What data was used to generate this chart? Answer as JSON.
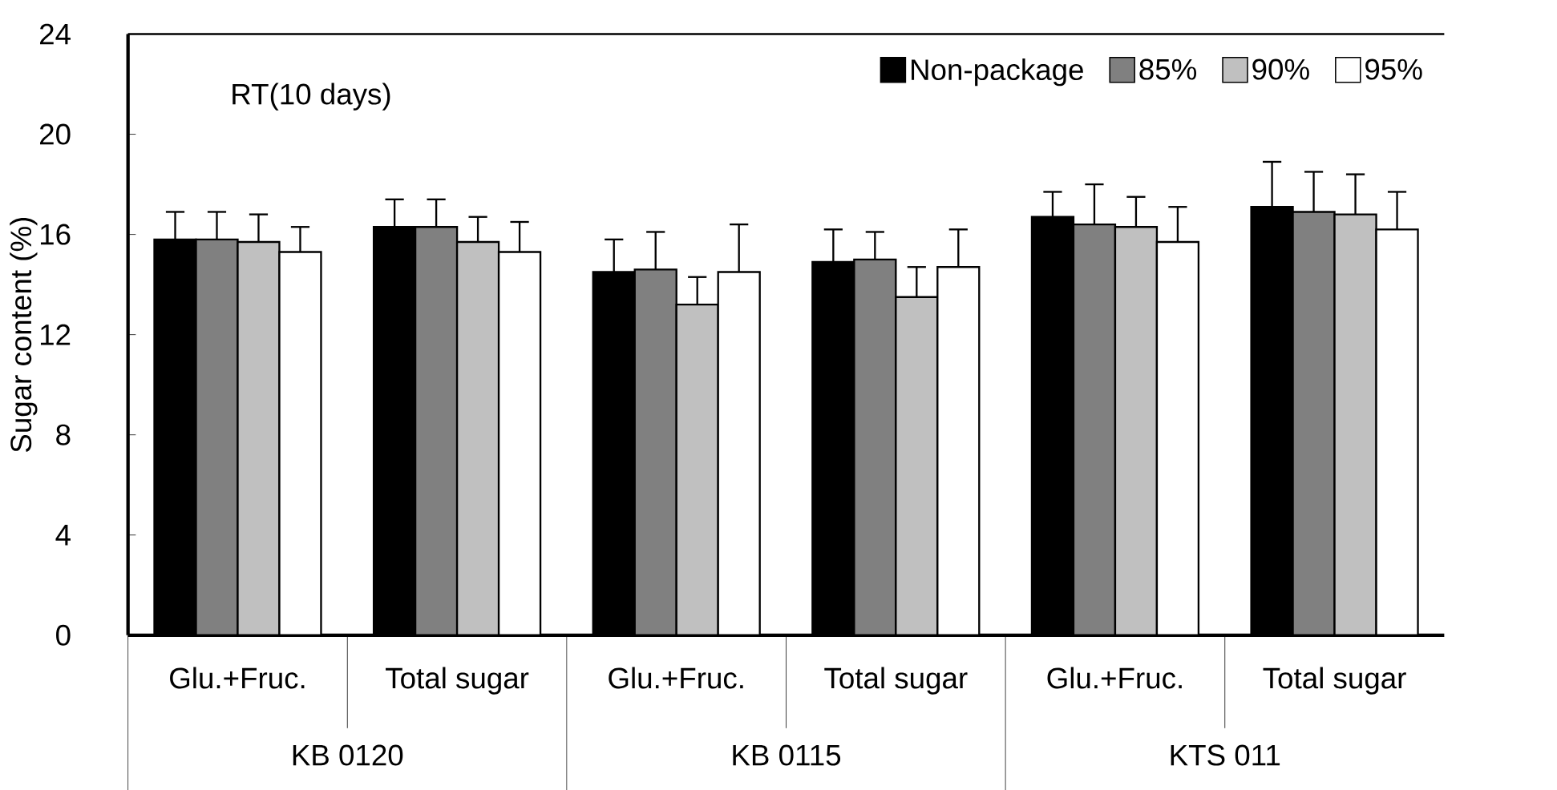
{
  "chart_data": {
    "type": "bar",
    "title": "RT(10 days)",
    "ylabel": "Sugar content (%)",
    "categories": [
      "Glu.+Fruc.",
      "Total sugar",
      "Glu.+Fruc.",
      "Total sugar",
      "Glu.+Fruc.",
      "Total sugar"
    ],
    "annotations": [
      "KB 0120",
      "KB 0115",
      "KTS 011"
    ],
    "ylim": [
      0,
      24
    ],
    "yticks": [
      0,
      4,
      8,
      12,
      16,
      20,
      24
    ],
    "legend": "top right",
    "grid": false,
    "series": [
      {
        "name": "Non-package",
        "color": "#000000",
        "values": [
          15.8,
          16.3,
          14.5,
          14.9,
          16.7,
          17.1
        ],
        "errors": [
          [
            15.8,
            16.9
          ],
          [
            16.3,
            17.4
          ],
          [
            14.5,
            15.8
          ],
          [
            14.9,
            16.2
          ],
          [
            16.7,
            17.7
          ],
          [
            17.1,
            18.9
          ]
        ]
      },
      {
        "name": "85%",
        "color": "#808080",
        "values": [
          15.8,
          16.3,
          14.6,
          15.0,
          16.4,
          16.9
        ],
        "errors": [
          [
            15.8,
            16.9
          ],
          [
            16.3,
            17.4
          ],
          [
            14.6,
            16.1
          ],
          [
            15.0,
            16.1
          ],
          [
            16.4,
            18.0
          ],
          [
            16.9,
            18.5
          ]
        ]
      },
      {
        "name": "90%",
        "color": "#c0c0c0",
        "values": [
          15.7,
          15.7,
          13.2,
          13.5,
          16.3,
          16.8
        ],
        "errors": [
          [
            15.7,
            16.8
          ],
          [
            15.7,
            16.7
          ],
          [
            13.2,
            14.3
          ],
          [
            13.5,
            14.7
          ],
          [
            16.3,
            17.5
          ],
          [
            16.8,
            18.4
          ]
        ]
      },
      {
        "name": "95%",
        "color": "#ffffff",
        "values": [
          15.3,
          15.3,
          14.5,
          14.7,
          15.7,
          16.2
        ],
        "errors": [
          [
            15.3,
            16.3
          ],
          [
            15.3,
            16.5
          ],
          [
            14.5,
            16.4
          ],
          [
            14.7,
            16.2
          ],
          [
            15.7,
            17.1
          ],
          [
            16.2,
            17.7
          ]
        ]
      }
    ]
  }
}
